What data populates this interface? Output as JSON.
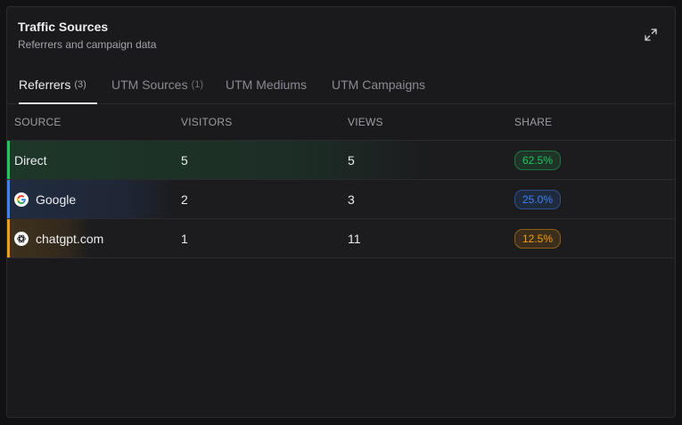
{
  "card": {
    "title": "Traffic Sources",
    "subtitle": "Referrers and campaign data",
    "expand_icon": "expand-icon"
  },
  "tabs": [
    {
      "label": "Referrers",
      "count": "(3)",
      "active": true
    },
    {
      "label": "UTM Sources",
      "count": "(1)",
      "active": false
    },
    {
      "label": "UTM Mediums",
      "count": "",
      "active": false
    },
    {
      "label": "UTM Campaigns",
      "count": "",
      "active": false
    }
  ],
  "table": {
    "columns": [
      "SOURCE",
      "VISITORS",
      "VIEWS",
      "SHARE"
    ],
    "rows": [
      {
        "source": "Direct",
        "icon": "",
        "visitors": "5",
        "views": "5",
        "share": "62.5%",
        "share_value": 62.5,
        "color": "#22c55e"
      },
      {
        "source": "Google",
        "icon": "google-icon",
        "visitors": "2",
        "views": "3",
        "share": "25.0%",
        "share_value": 25.0,
        "color": "#3b82f6"
      },
      {
        "source": "chatgpt.com",
        "icon": "openai-icon",
        "visitors": "1",
        "views": "11",
        "share": "12.5%",
        "share_value": 12.5,
        "color": "#f59e0b"
      }
    ]
  }
}
